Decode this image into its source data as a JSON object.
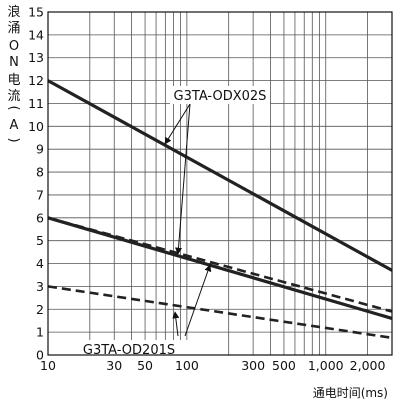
{
  "chart_data": {
    "type": "line",
    "xscale": "log",
    "xlim": [
      10,
      3000
    ],
    "ylim": [
      0,
      15
    ],
    "grid": true,
    "yticks": [
      0,
      1,
      2,
      3,
      4,
      5,
      6,
      7,
      8,
      9,
      10,
      11,
      12,
      13,
      14,
      15
    ],
    "xticks": [
      {
        "value": 10,
        "label": "10"
      },
      {
        "value": 30,
        "label": "30"
      },
      {
        "value": 50,
        "label": "50"
      },
      {
        "value": 100,
        "label": "100"
      },
      {
        "value": 300,
        "label": "300"
      },
      {
        "value": 500,
        "label": "500"
      },
      {
        "value": 1000,
        "label": "1,000"
      },
      {
        "value": 2000,
        "label": "2,000"
      }
    ],
    "ylabel": "浪涌ON电流(A)",
    "xlabel": "通电时间(ms)",
    "series": [
      {
        "style": "solid",
        "x": [
          10,
          3000
        ],
        "y": [
          12.0,
          3.7
        ]
      },
      {
        "style": "solid",
        "x": [
          10,
          3000
        ],
        "y": [
          6.0,
          1.6
        ]
      },
      {
        "style": "dashed",
        "x": [
          10,
          3000
        ],
        "y": [
          6.0,
          1.9
        ]
      },
      {
        "style": "dashed",
        "x": [
          10,
          3000
        ],
        "y": [
          3.0,
          0.75
        ]
      }
    ],
    "annotations": [
      {
        "text": "G3TA-ODX02S",
        "x": 250,
        "y": 11.3
      },
      {
        "text": "G3TA-OD201S",
        "x": 50,
        "y": 0.35
      }
    ]
  }
}
